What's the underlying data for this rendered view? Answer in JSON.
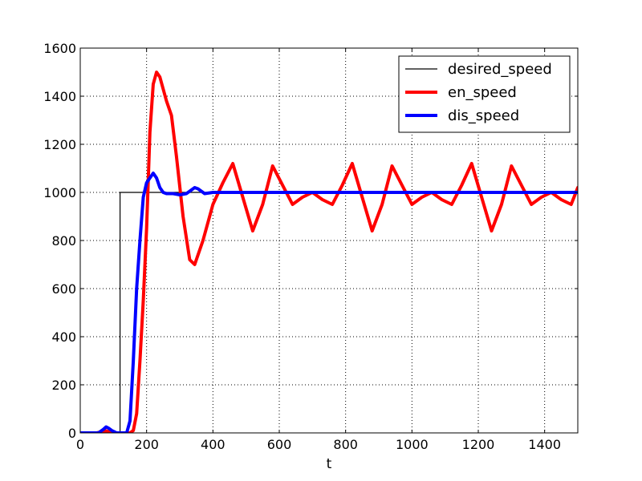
{
  "chart_data": {
    "type": "line",
    "title": "",
    "xlabel": "t",
    "ylabel": "",
    "xlim": [
      0,
      1500
    ],
    "ylim": [
      0,
      1600
    ],
    "xticks": [
      0,
      200,
      400,
      600,
      800,
      1000,
      1200,
      1400
    ],
    "yticks": [
      0,
      200,
      400,
      600,
      800,
      1000,
      1200,
      1400,
      1600
    ],
    "grid": true,
    "legend_position": "top-right",
    "series": [
      {
        "name": "desired_speed",
        "color": "#000000",
        "line_width": "thin",
        "x": [
          0,
          120,
          120,
          1500
        ],
        "y": [
          0,
          0,
          1000,
          1000
        ]
      },
      {
        "name": "en_speed",
        "color": "#ff0000",
        "line_width": "thick",
        "x": [
          0,
          30,
          50,
          65,
          75,
          85,
          100,
          130,
          150,
          160,
          170,
          180,
          190,
          200,
          210,
          220,
          230,
          240,
          250,
          260,
          275,
          290,
          310,
          330,
          345,
          370,
          400,
          430,
          460,
          490,
          520,
          550,
          580,
          610,
          640,
          670,
          700,
          730,
          760,
          790,
          820,
          850,
          880,
          910,
          940,
          970,
          1000,
          1030,
          1060,
          1090,
          1120,
          1150,
          1180,
          1210,
          1240,
          1270,
          1300,
          1330,
          1360,
          1390,
          1420,
          1450,
          1480,
          1500
        ],
        "y": [
          0,
          0,
          0,
          5,
          10,
          5,
          0,
          0,
          0,
          10,
          80,
          300,
          550,
          850,
          1250,
          1450,
          1500,
          1480,
          1430,
          1380,
          1320,
          1150,
          900,
          720,
          700,
          800,
          950,
          1040,
          1120,
          980,
          840,
          950,
          1110,
          1030,
          950,
          980,
          1000,
          970,
          950,
          1030,
          1120,
          980,
          840,
          950,
          1110,
          1030,
          950,
          980,
          1000,
          970,
          950,
          1030,
          1120,
          980,
          840,
          950,
          1110,
          1030,
          950,
          980,
          1000,
          970,
          950,
          1020
        ]
      },
      {
        "name": "dis_speed",
        "color": "#0000ff",
        "line_width": "thick",
        "x": [
          0,
          30,
          55,
          70,
          78,
          85,
          95,
          110,
          140,
          150,
          160,
          170,
          180,
          190,
          200,
          210,
          220,
          230,
          240,
          250,
          260,
          280,
          300,
          320,
          335,
          345,
          355,
          365,
          375,
          400,
          450,
          500,
          1500
        ],
        "y": [
          0,
          0,
          0,
          15,
          25,
          20,
          10,
          0,
          0,
          50,
          300,
          600,
          800,
          980,
          1040,
          1060,
          1080,
          1060,
          1020,
          1000,
          995,
          995,
          990,
          995,
          1010,
          1020,
          1015,
          1005,
          995,
          1000,
          1000,
          1000,
          1000
        ]
      }
    ]
  }
}
